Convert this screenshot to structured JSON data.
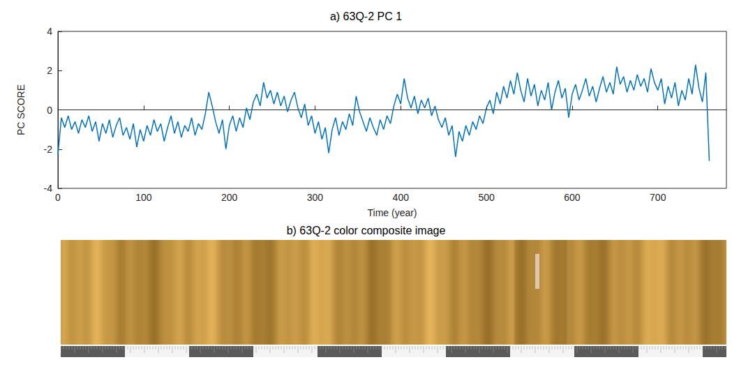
{
  "chart_data": {
    "type": "line",
    "title": "a) 63Q-2 PC 1",
    "x_label": "Time (year)",
    "y_label": "PC SCORE",
    "color": "#0072bd",
    "grid": false,
    "xlim": [
      0,
      780
    ],
    "xticks": [
      0,
      100,
      200,
      300,
      400,
      500,
      600,
      700
    ],
    "ylim": [
      -4,
      4
    ],
    "yticks": [
      -4,
      -2,
      0,
      2,
      4
    ],
    "x": [
      0,
      4,
      8,
      12,
      16,
      20,
      24,
      28,
      32,
      36,
      40,
      44,
      48,
      52,
      56,
      60,
      64,
      68,
      72,
      76,
      80,
      84,
      88,
      92,
      96,
      100,
      104,
      108,
      112,
      116,
      120,
      124,
      128,
      132,
      136,
      140,
      144,
      148,
      152,
      156,
      160,
      164,
      168,
      172,
      176,
      180,
      184,
      188,
      192,
      196,
      200,
      204,
      208,
      212,
      216,
      220,
      224,
      228,
      232,
      236,
      240,
      244,
      248,
      252,
      256,
      260,
      264,
      268,
      272,
      276,
      280,
      284,
      288,
      292,
      296,
      300,
      304,
      308,
      312,
      316,
      320,
      324,
      328,
      332,
      336,
      340,
      344,
      348,
      352,
      356,
      360,
      364,
      368,
      372,
      376,
      380,
      384,
      388,
      392,
      396,
      400,
      404,
      408,
      412,
      416,
      420,
      424,
      428,
      432,
      436,
      440,
      444,
      448,
      452,
      456,
      460,
      464,
      468,
      472,
      476,
      480,
      484,
      488,
      492,
      496,
      500,
      504,
      508,
      512,
      516,
      520,
      524,
      528,
      532,
      536,
      540,
      544,
      548,
      552,
      556,
      560,
      564,
      568,
      572,
      576,
      580,
      584,
      588,
      592,
      596,
      600,
      604,
      608,
      612,
      616,
      620,
      624,
      628,
      632,
      636,
      640,
      644,
      648,
      652,
      656,
      660,
      664,
      668,
      672,
      676,
      680,
      684,
      688,
      692,
      696,
      700,
      704,
      708,
      712,
      716,
      720,
      724,
      728,
      732,
      736,
      740,
      744,
      748,
      752,
      756,
      760
    ],
    "values": [
      -2.3,
      -0.4,
      -0.9,
      -0.3,
      -1.0,
      -0.6,
      -1.2,
      -0.5,
      -0.9,
      -0.3,
      -1.1,
      -0.6,
      -1.6,
      -0.7,
      -1.2,
      -0.5,
      -1.4,
      -0.8,
      -0.4,
      -1.3,
      -0.9,
      -1.5,
      -0.7,
      -1.9,
      -1.0,
      -1.6,
      -0.8,
      -1.3,
      -0.5,
      -1.1,
      -0.7,
      -1.6,
      -0.9,
      -0.3,
      -1.2,
      -0.6,
      -1.4,
      -0.8,
      -1.1,
      -0.4,
      -1.3,
      -0.7,
      -1.0,
      -0.2,
      0.9,
      0.2,
      -0.6,
      -1.2,
      -0.5,
      -2.0,
      -0.8,
      -0.3,
      -1.1,
      -0.4,
      -0.9,
      0.1,
      -0.5,
      0.4,
      0.8,
      0.2,
      1.4,
      0.6,
      1.0,
      0.3,
      0.9,
      0.2,
      0.7,
      -0.1,
      0.5,
      0.9,
      0.1,
      -0.4,
      0.3,
      -0.8,
      -0.3,
      -1.2,
      -0.6,
      -1.5,
      -0.9,
      -2.2,
      -1.0,
      -0.4,
      -1.3,
      -0.6,
      -1.0,
      -0.2,
      -0.8,
      0.7,
      -0.1,
      -0.6,
      -1.1,
      -0.4,
      -0.9,
      -1.3,
      -0.5,
      -1.0,
      -0.3,
      -0.7,
      0.2,
      0.8,
      0.3,
      1.6,
      0.6,
      0.1,
      0.7,
      -0.2,
      0.5,
      0.1,
      0.6,
      -0.3,
      0.2,
      -0.5,
      -0.9,
      -0.4,
      -1.3,
      -0.8,
      -2.4,
      -1.1,
      -1.6,
      -0.8,
      -1.3,
      -0.6,
      -1.0,
      -0.3,
      -0.7,
      0.1,
      0.5,
      -0.2,
      0.9,
      0.3,
      1.2,
      0.6,
      1.5,
      0.8,
      1.9,
      1.0,
      0.4,
      1.6,
      0.7,
      1.3,
      0.2,
      1.0,
      0.5,
      1.4,
      0.0,
      0.9,
      1.5,
      0.6,
      1.1,
      -0.4,
      0.8,
      1.3,
      0.5,
      1.0,
      1.6,
      0.7,
      1.2,
      0.4,
      1.1,
      1.7,
      0.9,
      1.4,
      0.8,
      2.2,
      1.3,
      1.7,
      0.9,
      1.5,
      1.0,
      1.8,
      1.2,
      1.6,
      0.9,
      2.1,
      1.4,
      1.0,
      1.6,
      0.3,
      1.2,
      0.6,
      1.4,
      0.2,
      1.0,
      0.5,
      1.6,
      0.8,
      2.3,
      1.1,
      0.4,
      1.9,
      -2.6
    ]
  },
  "image_panel": {
    "title": "b) 63Q-2 color composite image"
  }
}
